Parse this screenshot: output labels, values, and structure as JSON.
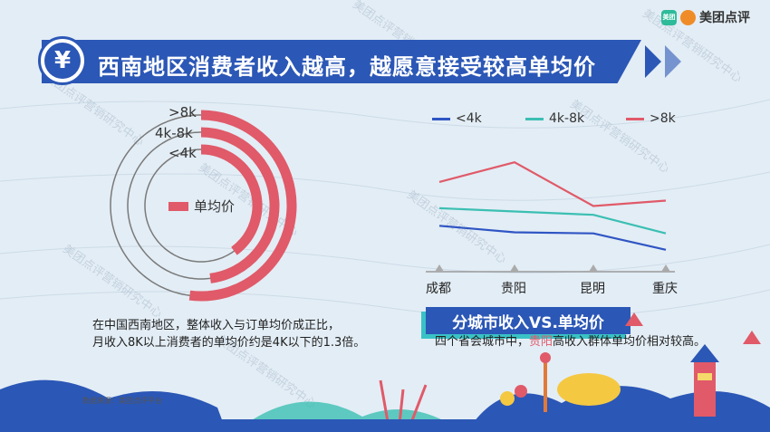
{
  "brand": {
    "name": "美团点评",
    "logo_text": "美团"
  },
  "title": "西南地区消费者收入越高，越愿意接受较高单均价",
  "title_icon": "yen-icon",
  "watermark": "美团点评营销研究中心",
  "left_chart": {
    "legend": "单均价",
    "caption_line1": "在中国西南地区，整体收入与订单均价成正比，",
    "caption_line2": "月收入8K以上消费者的单均价约是4K以下的1.3倍。"
  },
  "right_chart": {
    "subtitle": "分城市收入VS.单均价",
    "caption_prefix": "四个省会城市中，",
    "caption_highlight": "贵阳",
    "caption_suffix": "高收入群体单均价相对较高。"
  },
  "source": "数据来源：美团点评平台",
  "colors": {
    "blue": "#2b57b6",
    "teal": "#3bbfb3",
    "pink": "#e05a69",
    "navy": "#2f55c4"
  },
  "chart_data": [
    {
      "type": "radial-bar",
      "categories": [
        ">8k",
        "4k-8k",
        "<4k"
      ],
      "legend": [
        "单均价"
      ],
      "values_relative": [
        1.3,
        1.2,
        1.0
      ],
      "color": "#e05a69"
    },
    {
      "type": "line",
      "categories": [
        "成都",
        "贵阳",
        "昆明",
        "重庆"
      ],
      "series": [
        {
          "name": "<4k",
          "color": "#2f55c4",
          "values": [
            0.42,
            0.36,
            0.35,
            0.2
          ]
        },
        {
          "name": "4k-8k",
          "color": "#3bbfb3",
          "values": [
            0.58,
            0.55,
            0.52,
            0.35
          ]
        },
        {
          "name": ">8k",
          "color": "#e05a69",
          "values": [
            0.82,
            1.0,
            0.6,
            0.65
          ]
        }
      ],
      "ylim": [
        0,
        1.2
      ],
      "yaxis_labels": false
    }
  ]
}
